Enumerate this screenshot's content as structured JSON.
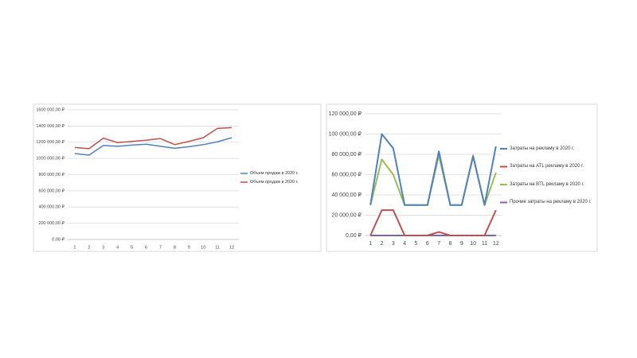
{
  "chart_data": [
    {
      "type": "line",
      "categories": [
        "1",
        "2",
        "3",
        "4",
        "5",
        "6",
        "7",
        "8",
        "9",
        "10",
        "11",
        "12"
      ],
      "ylim": [
        0,
        1600000
      ],
      "yticks": [
        {
          "value": 0,
          "label": "0,00 ₽"
        },
        {
          "value": 200000,
          "label": "200 000,00 ₽"
        },
        {
          "value": 400000,
          "label": "400 000,00 ₽"
        },
        {
          "value": 600000,
          "label": "600 000,00 ₽"
        },
        {
          "value": 800000,
          "label": "800 000,00 ₽"
        },
        {
          "value": 1000000,
          "label": "1000 000,00 ₽"
        },
        {
          "value": 1200000,
          "label": "1200 000,00 ₽"
        },
        {
          "value": 1400000,
          "label": "1400 000,00 ₽"
        },
        {
          "value": 1600000,
          "label": "1600 000,00 ₽"
        }
      ],
      "grid": true,
      "legend": "right",
      "series": [
        {
          "name": "Объем продаж в 2020 г.",
          "color": "#4f81bd",
          "values": [
            1060000,
            1040000,
            1160000,
            1150000,
            1165000,
            1175000,
            1150000,
            1125000,
            1145000,
            1170000,
            1205000,
            1255000
          ]
        },
        {
          "name": "Объем продаж в 2020 г.",
          "color": "#c0504d",
          "values": [
            1135000,
            1120000,
            1250000,
            1195000,
            1210000,
            1225000,
            1245000,
            1170000,
            1210000,
            1255000,
            1370000,
            1380000
          ]
        }
      ]
    },
    {
      "type": "line",
      "categories": [
        "1",
        "2",
        "3",
        "4",
        "5",
        "6",
        "7",
        "8",
        "9",
        "10",
        "11",
        "12"
      ],
      "ylim": [
        0,
        120000
      ],
      "yticks": [
        {
          "value": 0,
          "label": "0,00 ₽"
        },
        {
          "value": 20000,
          "label": "20 000,00 ₽"
        },
        {
          "value": 40000,
          "label": "40 000,00 ₽"
        },
        {
          "value": 60000,
          "label": "60 000,00 ₽"
        },
        {
          "value": 80000,
          "label": "80 000,00 ₽"
        },
        {
          "value": 100000,
          "label": "100 000,00 ₽"
        },
        {
          "value": 120000,
          "label": "120 000,00 ₽"
        }
      ],
      "grid": true,
      "legend": "right",
      "series": [
        {
          "name": "Затраты на рекламу в 2020 г.",
          "color": "#4f81bd",
          "values": [
            30000,
            100000,
            86000,
            30000,
            30000,
            30000,
            83000,
            30000,
            30000,
            78000,
            30000,
            88000
          ]
        },
        {
          "name": "Затраты на ATL рекламу в 2020 г.",
          "color": "#c0504d",
          "values": [
            0,
            25000,
            25000,
            0,
            0,
            0,
            3500,
            0,
            0,
            0,
            0,
            25000
          ]
        },
        {
          "name": "Затраты на BTL рекламу в 2020 г.",
          "color": "#9bbb59",
          "values": [
            30000,
            75000,
            60000,
            30000,
            30000,
            30000,
            79000,
            30000,
            30000,
            79000,
            30000,
            62000
          ]
        },
        {
          "name": "Прочие затраты на рекламу в 2020 г.",
          "color": "#8064a2",
          "values": [
            0,
            0,
            0,
            0,
            0,
            0,
            0,
            0,
            0,
            0,
            0,
            0
          ]
        }
      ]
    }
  ]
}
